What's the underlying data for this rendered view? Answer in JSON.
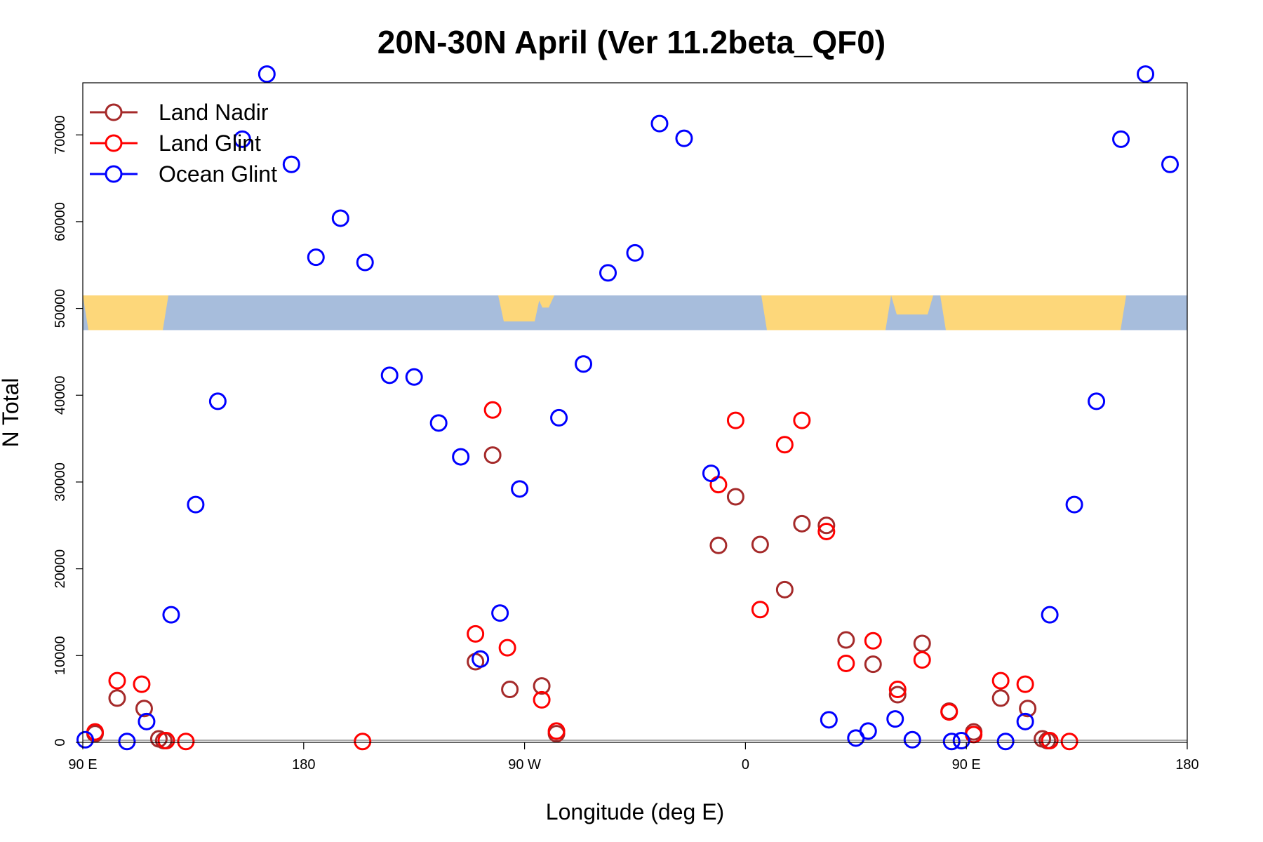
{
  "chart_data": {
    "type": "scatter",
    "title": "20N-30N April (Ver 11.2beta_QF0)",
    "xlabel": "Longitude (deg E)",
    "ylabel": "N Total",
    "xlim": [
      90,
      540
    ],
    "ylim": [
      0,
      76000
    ],
    "x_ticks": [
      {
        "value": 90,
        "label": "90 E"
      },
      {
        "value": 180,
        "label": "180"
      },
      {
        "value": 270,
        "label": "90 W"
      },
      {
        "value": 360,
        "label": "0"
      },
      {
        "value": 450,
        "label": "90 E"
      },
      {
        "value": 540,
        "label": "180"
      }
    ],
    "y_ticks": [
      {
        "value": 0,
        "label": "0"
      },
      {
        "value": 10000,
        "label": "10000"
      },
      {
        "value": 20000,
        "label": "20000"
      },
      {
        "value": 30000,
        "label": "30000"
      },
      {
        "value": 40000,
        "label": "40000"
      },
      {
        "value": 50000,
        "label": "50000"
      },
      {
        "value": 60000,
        "label": "60000"
      },
      {
        "value": 70000,
        "label": "70000"
      }
    ],
    "legend_position": "top-left",
    "map_strip": {
      "ocean_color": "#a7bddc",
      "land_color": "#fdd77a",
      "y_range": [
        47500,
        51500
      ]
    },
    "series": [
      {
        "name": "Land Nadir",
        "color": "#a52a2a",
        "points": [
          [
            95,
            1000
          ],
          [
            104,
            5100
          ],
          [
            115,
            3900
          ],
          [
            121,
            400
          ],
          [
            123,
            200
          ],
          [
            250,
            9300
          ],
          [
            257,
            33100
          ],
          [
            264,
            6100
          ],
          [
            277,
            6500
          ],
          [
            283,
            1000
          ],
          [
            349,
            22700
          ],
          [
            356,
            28300
          ],
          [
            366,
            22800
          ],
          [
            376,
            17600
          ],
          [
            383,
            25200
          ],
          [
            393,
            25000
          ],
          [
            401,
            11800
          ],
          [
            412,
            9000
          ],
          [
            422,
            5500
          ],
          [
            432,
            11400
          ],
          [
            443,
            3600
          ],
          [
            453,
            1200
          ],
          [
            464,
            5100
          ],
          [
            475,
            3900
          ],
          [
            481,
            400
          ],
          [
            483,
            200
          ]
        ]
      },
      {
        "name": "Land Glint",
        "color": "#ff0000",
        "points": [
          [
            95,
            1200
          ],
          [
            104,
            7100
          ],
          [
            114,
            6700
          ],
          [
            124,
            200
          ],
          [
            132,
            100
          ],
          [
            204,
            100
          ],
          [
            250,
            12500
          ],
          [
            257,
            38300
          ],
          [
            263,
            10900
          ],
          [
            277,
            4900
          ],
          [
            283,
            1300
          ],
          [
            349,
            29700
          ],
          [
            356,
            37100
          ],
          [
            366,
            15300
          ],
          [
            376,
            34300
          ],
          [
            383,
            37100
          ],
          [
            393,
            24300
          ],
          [
            401,
            9100
          ],
          [
            412,
            11700
          ],
          [
            422,
            6100
          ],
          [
            432,
            9500
          ],
          [
            443,
            3500
          ],
          [
            453,
            900
          ],
          [
            464,
            7100
          ],
          [
            474,
            6700
          ],
          [
            484,
            200
          ],
          [
            492,
            100
          ]
        ]
      },
      {
        "name": "Ocean Glint",
        "color": "#0000ff",
        "points": [
          [
            91,
            300
          ],
          [
            108,
            100
          ],
          [
            116,
            2400
          ],
          [
            126,
            14700
          ],
          [
            136,
            27400
          ],
          [
            145,
            39300
          ],
          [
            155,
            69500
          ],
          [
            165,
            77000
          ],
          [
            175,
            66600
          ],
          [
            185,
            55900
          ],
          [
            195,
            60400
          ],
          [
            205,
            55300
          ],
          [
            215,
            42300
          ],
          [
            225,
            42100
          ],
          [
            235,
            36800
          ],
          [
            244,
            32900
          ],
          [
            252,
            9600
          ],
          [
            260,
            14900
          ],
          [
            268,
            29200
          ],
          [
            284,
            37400
          ],
          [
            294,
            43600
          ],
          [
            304,
            54100
          ],
          [
            315,
            56400
          ],
          [
            325,
            71300
          ],
          [
            335,
            69600
          ],
          [
            346,
            31000
          ],
          [
            394,
            2600
          ],
          [
            405,
            500
          ],
          [
            410,
            1300
          ],
          [
            421,
            2700
          ],
          [
            428,
            300
          ],
          [
            444,
            100
          ],
          [
            448,
            200
          ],
          [
            466,
            100
          ],
          [
            474,
            2400
          ],
          [
            484,
            14700
          ],
          [
            494,
            27400
          ],
          [
            503,
            39300
          ],
          [
            513,
            69500
          ],
          [
            523,
            77000
          ],
          [
            533,
            66600
          ]
        ]
      }
    ]
  }
}
